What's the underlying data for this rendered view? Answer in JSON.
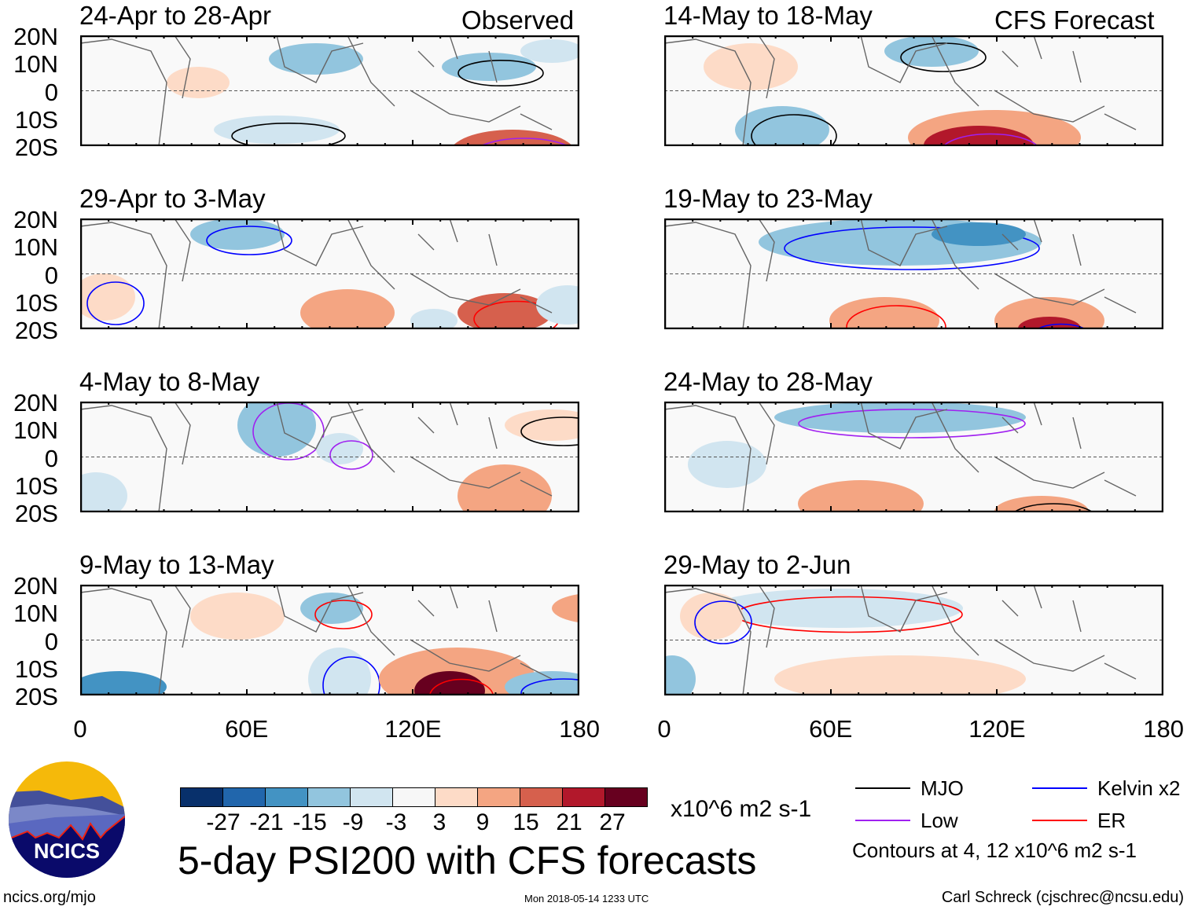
{
  "observed_label": "Observed",
  "forecast_label": "CFS Forecast",
  "chart_data": {
    "type": "heatmap",
    "title": "5-day PSI200 with CFS forecasts",
    "variable": "PSI200 anomaly",
    "units": "x10^6 m2 s-1",
    "panels_observed": [
      "24-Apr to 28-Apr",
      "29-Apr to 3-May",
      "4-May to 8-May",
      "9-May to 13-May"
    ],
    "panels_forecast": [
      "14-May to 18-May",
      "19-May to 23-May",
      "24-May to 28-May",
      "29-May to 2-Jun"
    ],
    "y_ticks": [
      "20N",
      "10N",
      "0",
      "10S",
      "20S"
    ],
    "x_ticks": [
      "0",
      "60E",
      "120E",
      "180"
    ],
    "ylim": [
      -20,
      20
    ],
    "xlim": [
      0,
      180
    ],
    "colorbar": {
      "ticks": [
        "-27",
        "-21",
        "-15",
        "-9",
        "-3",
        "3",
        "9",
        "15",
        "21",
        "27"
      ],
      "colors": [
        "#08306b",
        "#2166ac",
        "#4393c3",
        "#92c5de",
        "#d1e5f0",
        "#f7f7f7",
        "#fddbc7",
        "#f4a582",
        "#d6604d",
        "#b2182b",
        "#67001f"
      ]
    },
    "legend": [
      {
        "name": "MJO",
        "color": "#000000"
      },
      {
        "name": "Kelvin x2",
        "color": "#0000ff"
      },
      {
        "name": "Low",
        "color": "#a020f0"
      },
      {
        "name": "ER",
        "color": "#ff0000"
      }
    ],
    "contour_note": "Contours at 4, 12 x10^6 m2 s-1"
  },
  "footer": {
    "url": "ncics.org/mjo",
    "timestamp": "Mon 2018-05-14 1233 UTC",
    "author": "Carl Schreck (cjschrec@ncsu.edu)",
    "logo": "NCICS"
  }
}
